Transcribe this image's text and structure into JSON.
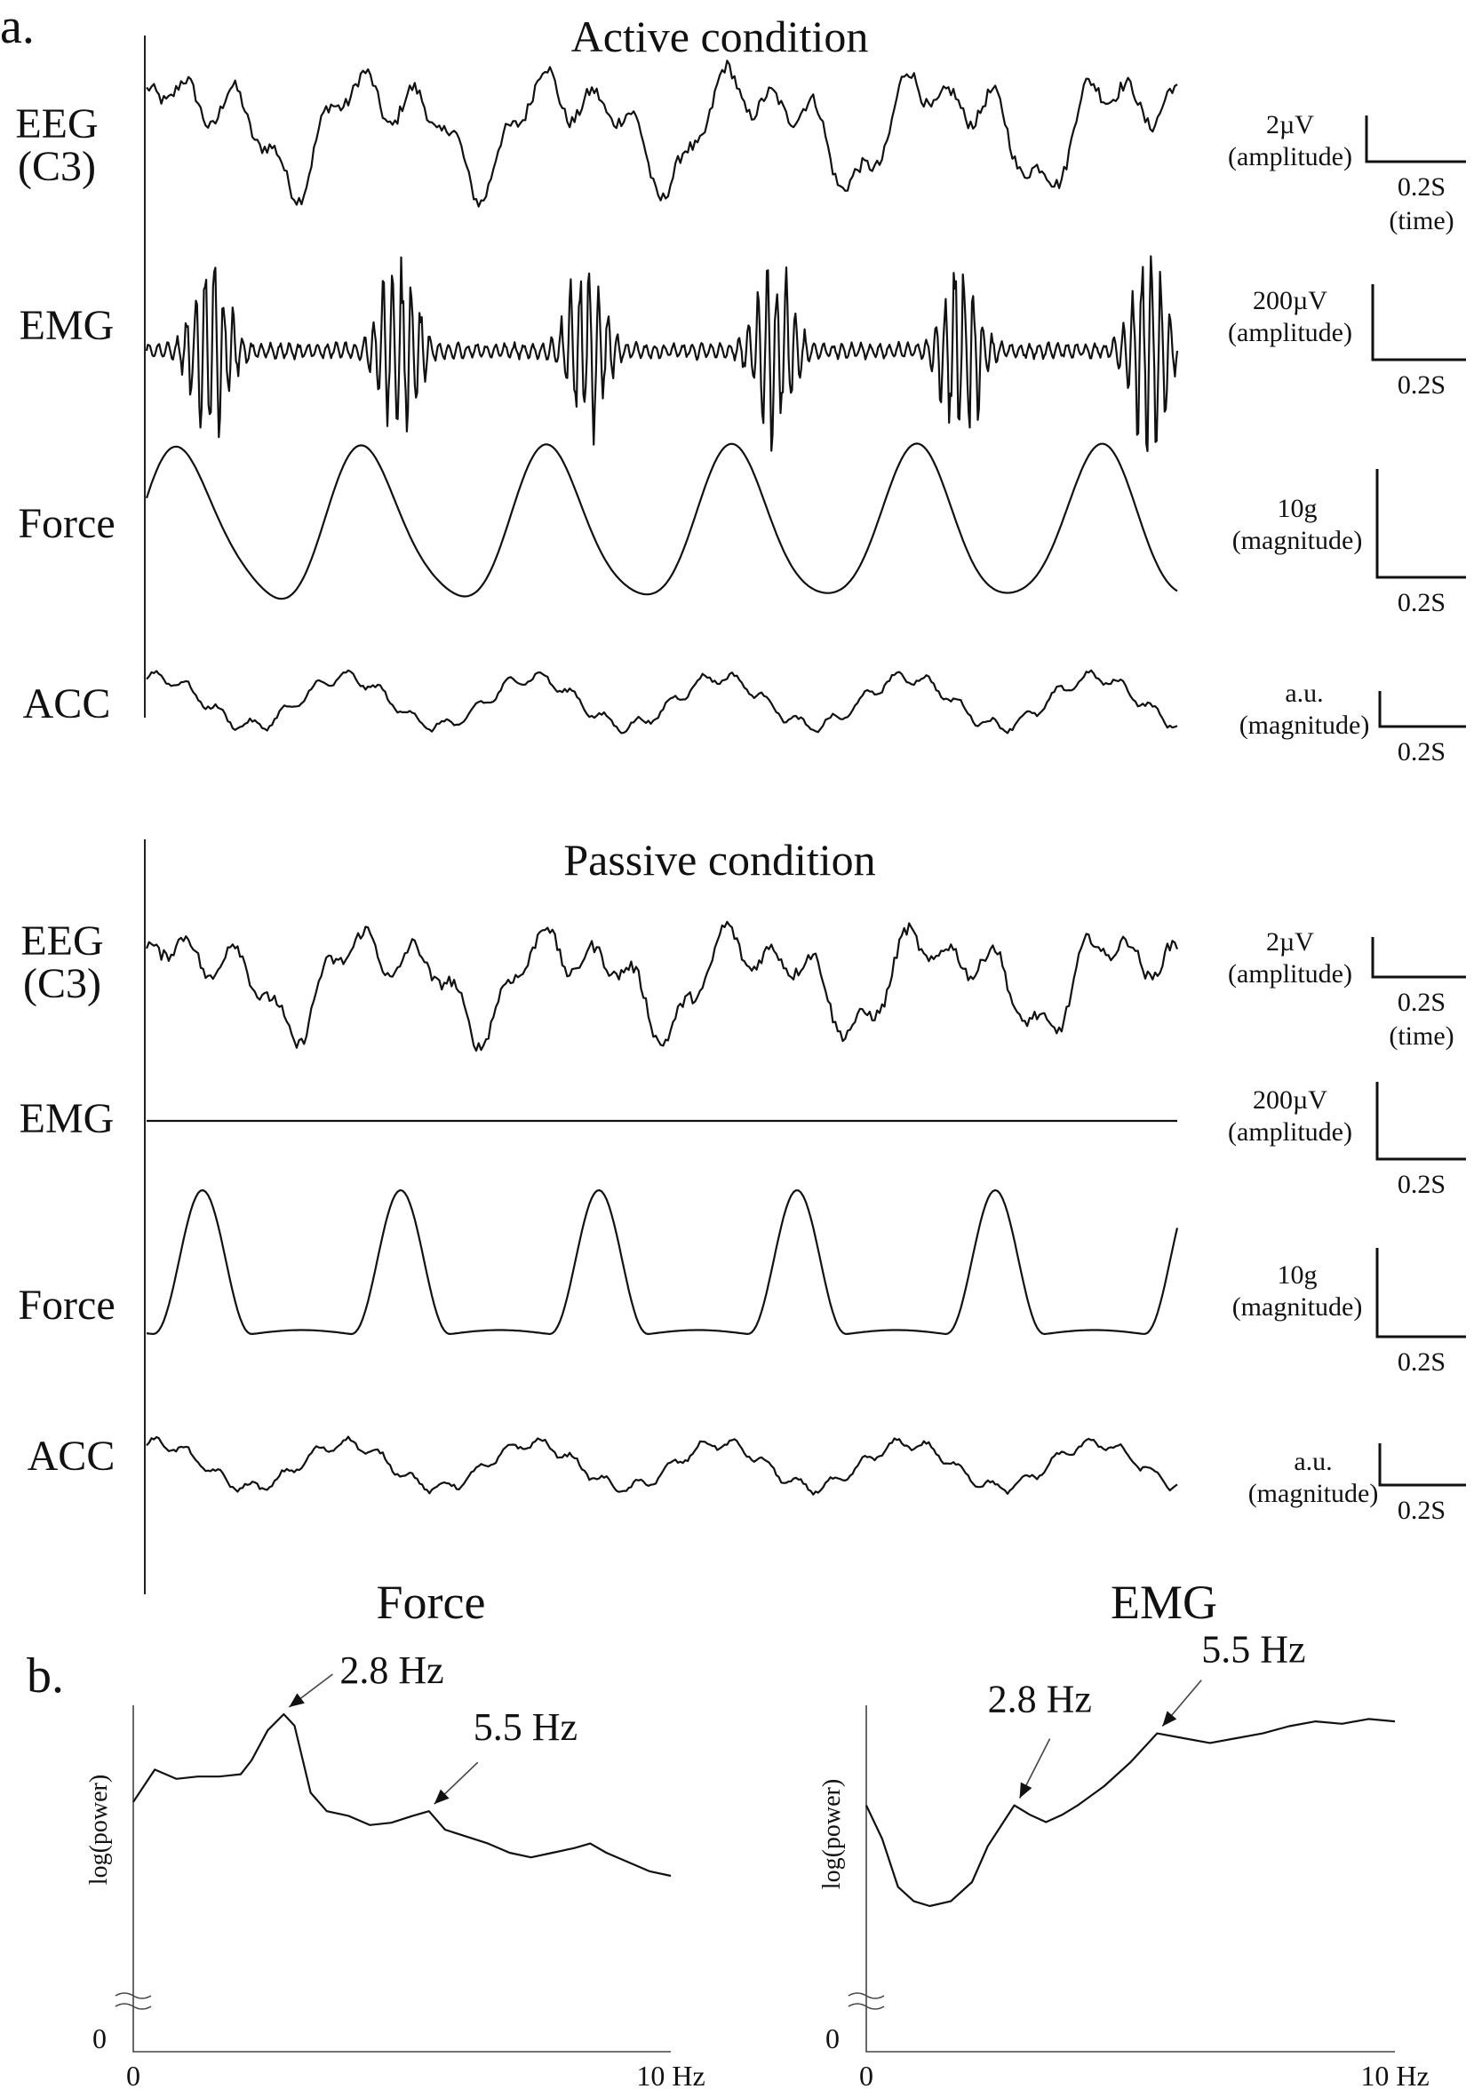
{
  "figure": {
    "panel_a_label": "a.",
    "panel_b_label": "b."
  },
  "chart_data": [
    {
      "type": "line",
      "title": "Active condition",
      "channels": [
        {
          "name": "EEG",
          "sub": "(C3)",
          "scale_value": "2µV",
          "scale_unit": "(amplitude)",
          "time_value": "0.2S",
          "time_unit": "(time)",
          "shape": "eeg"
        },
        {
          "name": "EMG",
          "sub": "",
          "scale_value": "200µV",
          "scale_unit": "(amplitude)",
          "time_value": "0.2S",
          "time_unit": "",
          "shape": "emg_bursts"
        },
        {
          "name": "Force",
          "sub": "",
          "scale_value": "10g",
          "scale_unit": "(magnitude)",
          "time_value": "0.2S",
          "time_unit": "",
          "shape": "force_active"
        },
        {
          "name": "ACC",
          "sub": "",
          "scale_value": "a.u.",
          "scale_unit": "(magnitude)",
          "time_value": "0.2S",
          "time_unit": "",
          "shape": "acc"
        }
      ]
    },
    {
      "type": "line",
      "title": "Passive condition",
      "channels": [
        {
          "name": "EEG",
          "sub": "(C3)",
          "scale_value": "2µV",
          "scale_unit": "(amplitude)",
          "time_value": "0.2S",
          "time_unit": "(time)",
          "shape": "eeg"
        },
        {
          "name": "EMG",
          "sub": "",
          "scale_value": "200µV",
          "scale_unit": "(amplitude)",
          "time_value": "0.2S",
          "time_unit": "",
          "shape": "flat"
        },
        {
          "name": "Force",
          "sub": "",
          "scale_value": "10g",
          "scale_unit": "(magnitude)",
          "time_value": "0.2S",
          "time_unit": "",
          "shape": "force_passive"
        },
        {
          "name": "ACC",
          "sub": "",
          "scale_value": "a.u.",
          "scale_unit": "(magnitude)",
          "time_value": "0.2S",
          "time_unit": "",
          "shape": "acc"
        }
      ]
    },
    {
      "type": "line",
      "title": "Force",
      "xlabel": "",
      "ylabel": "log(power)",
      "x_tick_labels": [
        "0",
        "10 Hz"
      ],
      "y_tick_label": "0",
      "xlim": [
        0,
        10
      ],
      "ylim": [
        0,
        1
      ],
      "x": [
        0,
        0.4,
        0.8,
        1.2,
        1.6,
        2.0,
        2.2,
        2.5,
        2.8,
        3.0,
        3.3,
        3.6,
        4.0,
        4.4,
        4.8,
        5.2,
        5.5,
        5.8,
        6.2,
        6.6,
        7.0,
        7.4,
        7.8,
        8.2,
        8.5,
        8.8,
        9.2,
        9.6,
        10.0
      ],
      "y": [
        0.62,
        0.76,
        0.72,
        0.73,
        0.73,
        0.74,
        0.8,
        0.93,
        1.0,
        0.95,
        0.66,
        0.58,
        0.56,
        0.52,
        0.53,
        0.56,
        0.58,
        0.5,
        0.47,
        0.44,
        0.4,
        0.38,
        0.4,
        0.42,
        0.44,
        0.4,
        0.36,
        0.32,
        0.3
      ],
      "annotations": [
        {
          "text": "2.8 Hz",
          "x": 2.8,
          "y": 1.0
        },
        {
          "text": "5.5 Hz",
          "x": 5.5,
          "y": 0.58
        }
      ]
    },
    {
      "type": "line",
      "title": "EMG",
      "xlabel": "",
      "ylabel": "log(power)",
      "x_tick_labels": [
        "0",
        "10 Hz"
      ],
      "y_tick_label": "0",
      "xlim": [
        0,
        10
      ],
      "ylim": [
        0,
        1
      ],
      "x": [
        0,
        0.3,
        0.6,
        0.9,
        1.2,
        1.6,
        2.0,
        2.3,
        2.8,
        3.1,
        3.4,
        3.7,
        4.0,
        4.5,
        5.0,
        5.5,
        6.0,
        6.5,
        7.0,
        7.5,
        8.0,
        8.5,
        9.0,
        9.5,
        10.0
      ],
      "y": [
        0.62,
        0.48,
        0.28,
        0.22,
        0.2,
        0.22,
        0.3,
        0.45,
        0.62,
        0.58,
        0.55,
        0.58,
        0.62,
        0.7,
        0.8,
        0.92,
        0.9,
        0.88,
        0.9,
        0.92,
        0.95,
        0.97,
        0.96,
        0.98,
        0.97
      ],
      "annotations": [
        {
          "text": "2.8 Hz",
          "x": 2.8,
          "y": 0.62
        },
        {
          "text": "5.5 Hz",
          "x": 5.5,
          "y": 0.92
        }
      ]
    }
  ]
}
